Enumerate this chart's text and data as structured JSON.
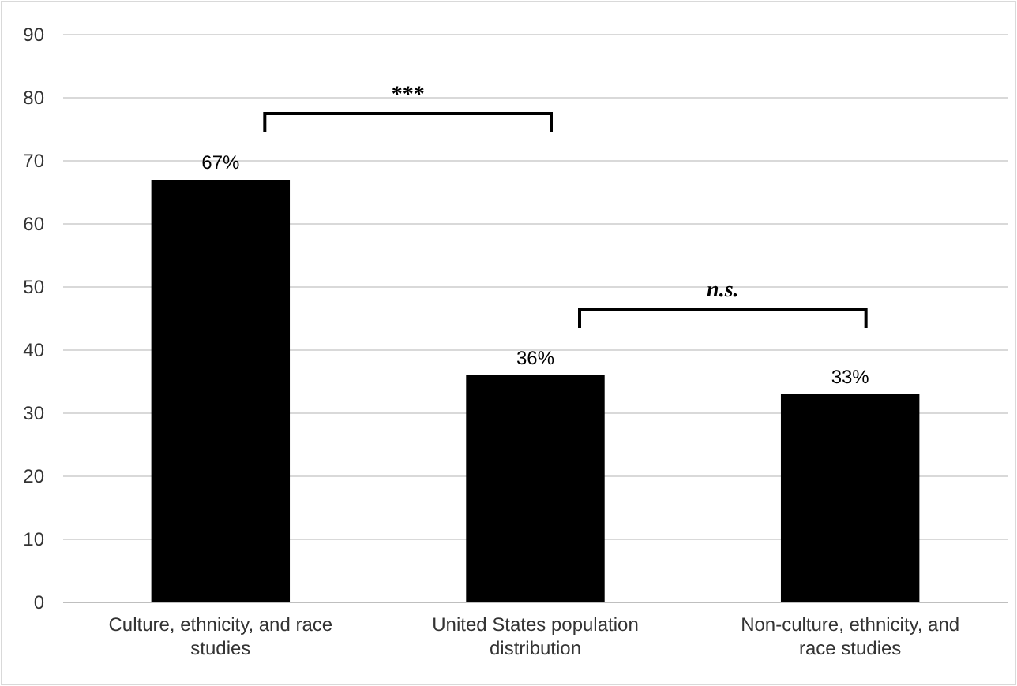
{
  "chart_data": {
    "type": "bar",
    "categories": [
      "Culture, ethnicity, and race studies",
      "United States population distribution",
      "Non-culture, ethnicity, and race studies"
    ],
    "values": [
      67,
      36,
      33
    ],
    "value_labels": [
      "67%",
      "36%",
      "33%"
    ],
    "color": "#000000",
    "ylim": [
      0,
      90
    ],
    "yticks": [
      0,
      10,
      20,
      30,
      40,
      50,
      60,
      70,
      80,
      90
    ],
    "grid": "y",
    "annotations": [
      "***",
      "n.s."
    ]
  }
}
